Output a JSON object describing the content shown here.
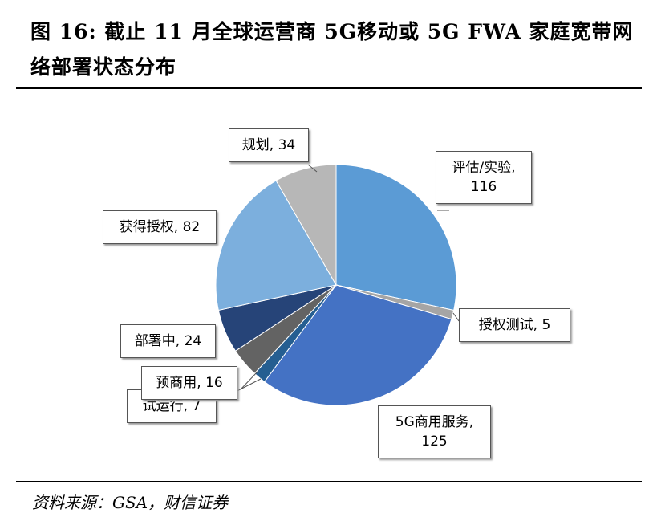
{
  "title": "图 16: 截止 11 月全球运营商 5G移动或 5G FWA 家庭宽带网络部署状态分布",
  "source": "资料来源：GSA，财信证券",
  "chart_data": {
    "type": "pie",
    "start": "12 o'clock, clockwise",
    "slices": [
      {
        "name": "评估/实验",
        "value": 116,
        "label": "评估/实验, 116",
        "color": "#5B9BD5"
      },
      {
        "name": "授权测试",
        "value": 5,
        "label": "授权测试, 5",
        "color": "#A5A5A5"
      },
      {
        "name": "5G商用服务",
        "value": 125,
        "label": "5G商用服务, 125",
        "color": "#4472C4"
      },
      {
        "name": "试运行",
        "value": 7,
        "label": "试运行, 7",
        "color": "#255E91"
      },
      {
        "name": "预商用",
        "value": 16,
        "label": "预商用, 16",
        "color": "#636363"
      },
      {
        "name": "部署中",
        "value": 24,
        "label": "部署中, 24",
        "color": "#264478"
      },
      {
        "name": "获得授权",
        "value": 82,
        "label": "获得授权, 82",
        "color": "#7CAFDD"
      },
      {
        "name": "规划",
        "value": 34,
        "label": "规划, 34",
        "color": "#B7B7B7"
      }
    ]
  }
}
